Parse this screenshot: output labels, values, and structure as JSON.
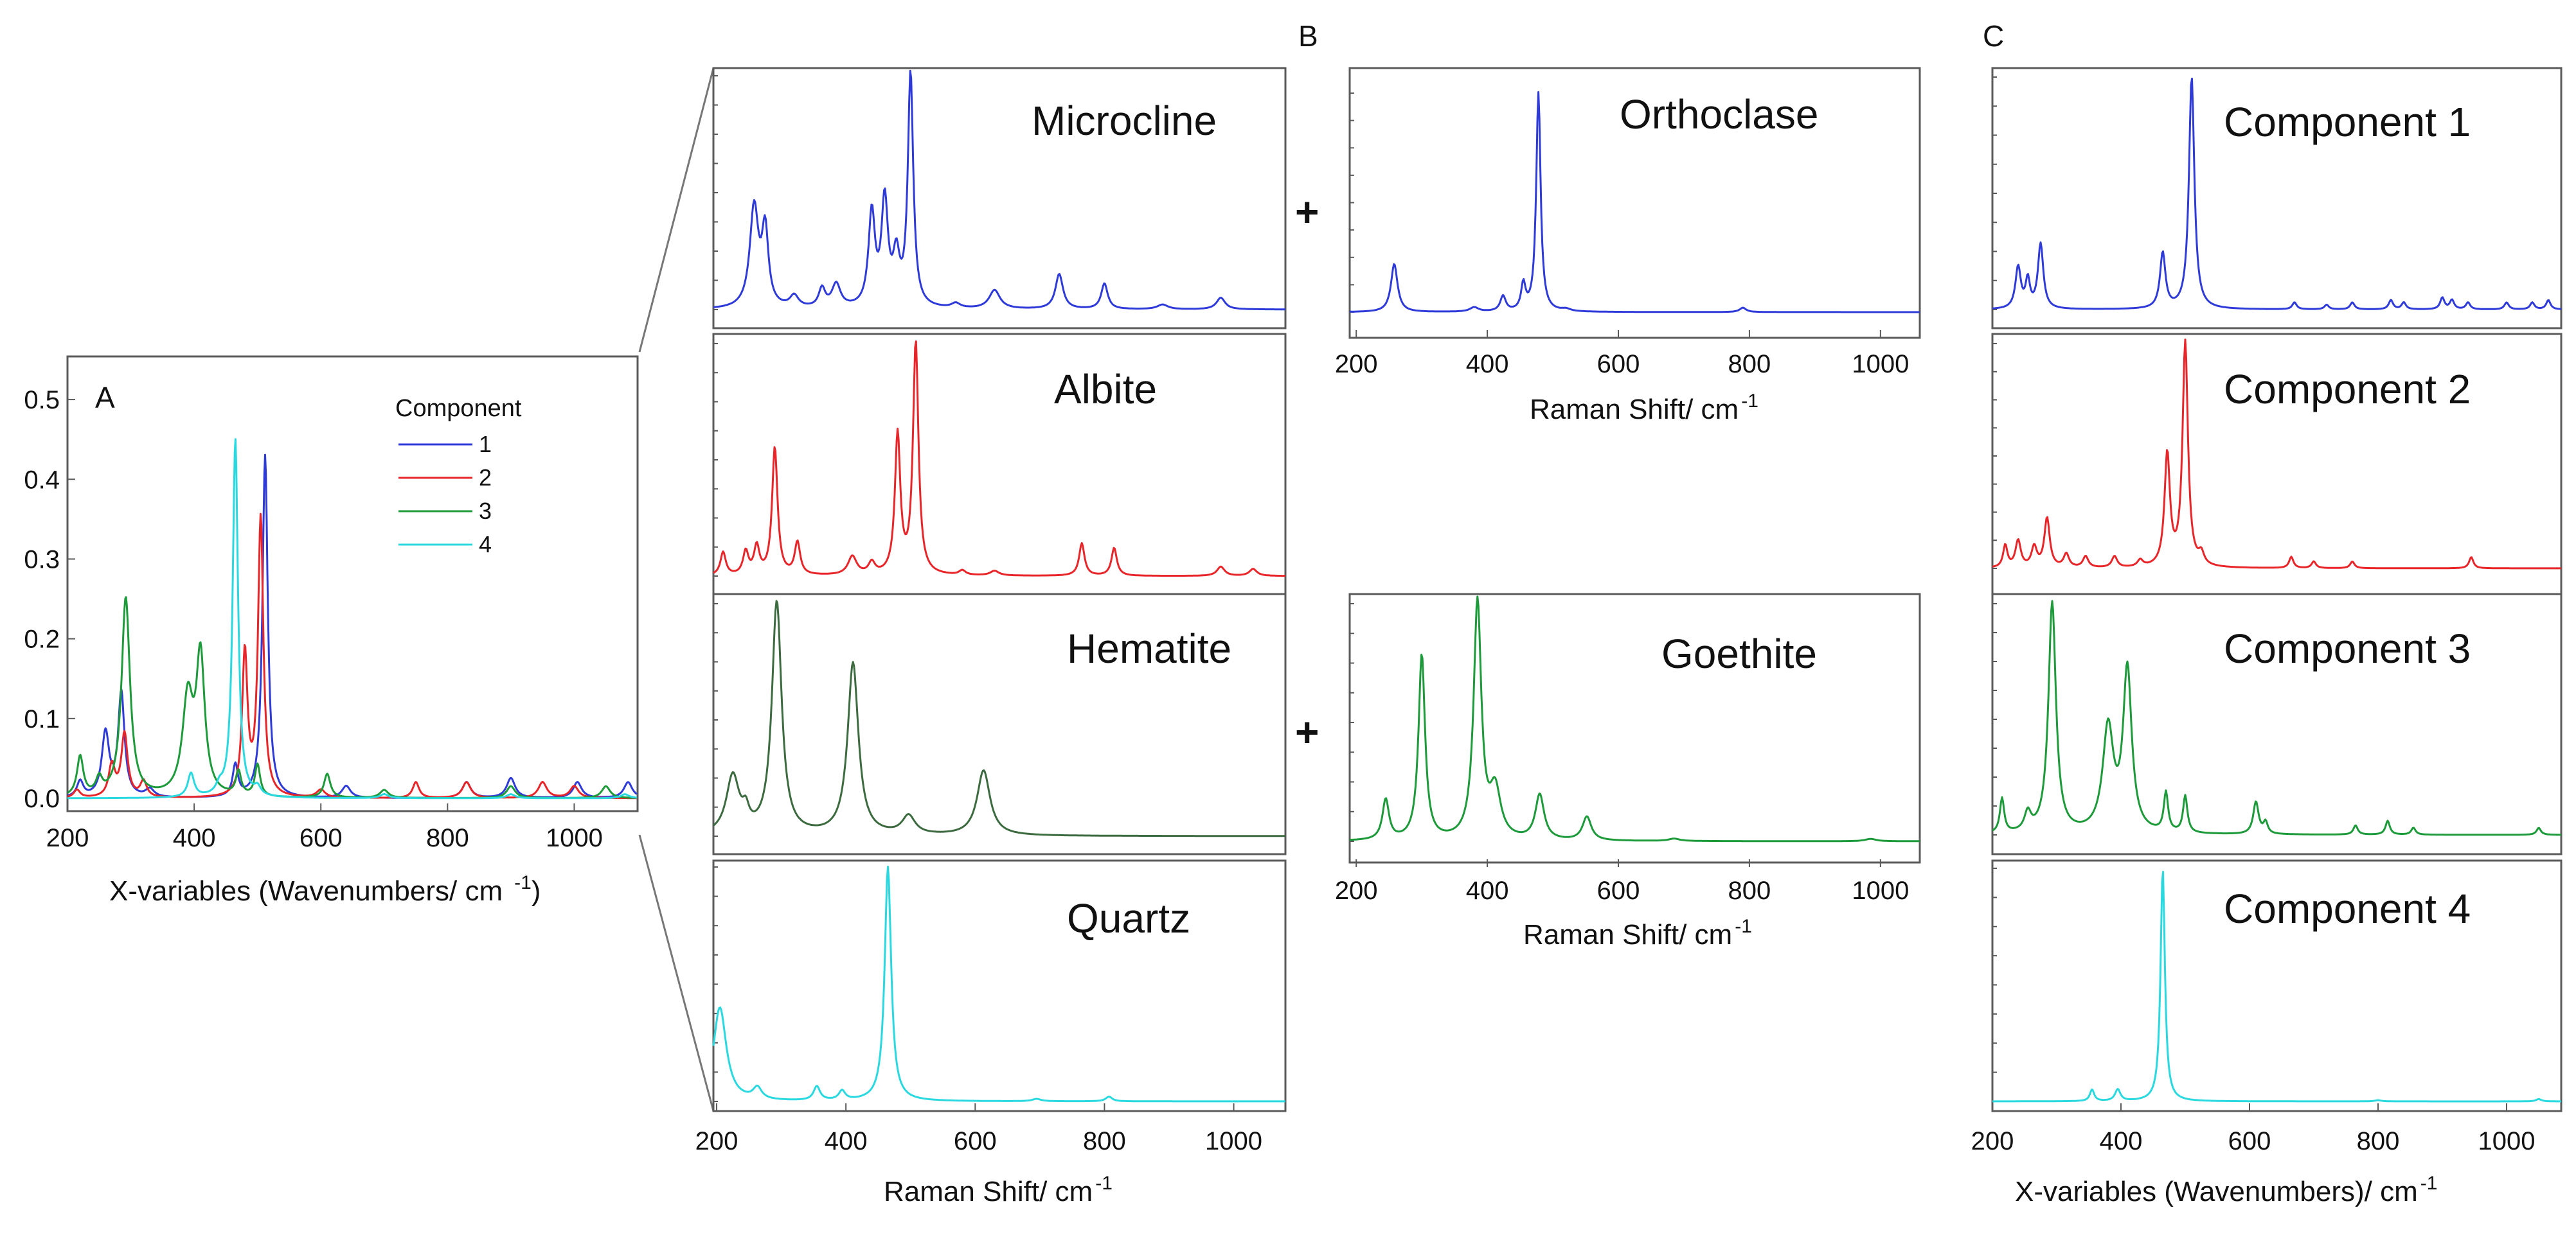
{
  "figure_labels": {
    "a": "A",
    "b": "B",
    "c": "C",
    "plus": "+"
  },
  "axis_titles": {
    "a_x": "X-variables (Wavenumbers/ cm",
    "a_x_exp": "-1",
    "a_x_close": ")",
    "raman": "Raman Shift/ cm",
    "raman_exp": "-1",
    "c_x": "X-variables (Wavenumbers)/ cm",
    "c_x_exp": "-1"
  },
  "colors": {
    "blue": "#2f3bd9",
    "red": "#e8262a",
    "green": "#1d9a3a",
    "dark_green": "#3d6b40",
    "cyan": "#2ad9e0"
  },
  "chart_data": [
    {
      "id": "A",
      "type": "line",
      "title": "A",
      "xlabel": "X-variables (Wavenumbers/ cm -1)",
      "ylabel": "",
      "xlim": [
        200,
        1100
      ],
      "ylim": [
        0,
        0.55
      ],
      "x_ticks": [
        200,
        400,
        600,
        800,
        1000
      ],
      "y_ticks": [
        0.0,
        0.1,
        0.2,
        0.3,
        0.4,
        0.5
      ],
      "y_tick_labels": [
        "0.0",
        "0.1",
        "0.2",
        "0.3",
        "0.4",
        "0.5"
      ],
      "legend": {
        "title": "Component",
        "position": "top-right"
      },
      "series": [
        {
          "name": "1",
          "color": "#2f3bd9",
          "peaks": [
            [
              220,
              0.02,
              6
            ],
            [
              260,
              0.08,
              7
            ],
            [
              285,
              0.13,
              6
            ],
            [
              330,
              0.01,
              8
            ],
            [
              465,
              0.04,
              5
            ],
            [
              512,
              0.43,
              5
            ],
            [
              640,
              0.015,
              8
            ],
            [
              830,
              0.02,
              8
            ],
            [
              900,
              0.025,
              8
            ],
            [
              1005,
              0.02,
              8
            ],
            [
              1085,
              0.02,
              8
            ]
          ]
        },
        {
          "name": "2",
          "color": "#e8262a",
          "peaks": [
            [
              215,
              0.01,
              6
            ],
            [
              270,
              0.04,
              6
            ],
            [
              290,
              0.08,
              6
            ],
            [
              320,
              0.02,
              6
            ],
            [
              480,
              0.18,
              5
            ],
            [
              505,
              0.35,
              5
            ],
            [
              600,
              0.01,
              8
            ],
            [
              750,
              0.02,
              6
            ],
            [
              830,
              0.02,
              8
            ],
            [
              950,
              0.02,
              8
            ],
            [
              1000,
              0.015,
              8
            ]
          ]
        },
        {
          "name": "3",
          "color": "#1d9a3a",
          "peaks": [
            [
              220,
              0.05,
              6
            ],
            [
              250,
              0.02,
              6
            ],
            [
              292,
              0.25,
              8
            ],
            [
              390,
              0.12,
              10
            ],
            [
              410,
              0.17,
              8
            ],
            [
              470,
              0.03,
              5
            ],
            [
              500,
              0.04,
              5
            ],
            [
              610,
              0.03,
              6
            ],
            [
              700,
              0.01,
              8
            ],
            [
              900,
              0.015,
              8
            ],
            [
              1050,
              0.015,
              8
            ]
          ]
        },
        {
          "name": "4",
          "color": "#2ad9e0",
          "peaks": [
            [
              395,
              0.03,
              6
            ],
            [
              440,
              0.01,
              6
            ],
            [
              465,
              0.45,
              5
            ],
            [
              500,
              0.01,
              6
            ],
            [
              700,
              0.005,
              8
            ],
            [
              900,
              0.005,
              8
            ],
            [
              1080,
              0.005,
              8
            ]
          ]
        }
      ]
    },
    {
      "id": "Microcline",
      "type": "line",
      "title": "Microcline",
      "xlim": [
        195,
        1080
      ],
      "ymax": 1.0,
      "color": "#2f3bd9",
      "series": [
        {
          "name": "Microcline",
          "peaks": [
            [
              258,
              0.43,
              8
            ],
            [
              275,
              0.32,
              6
            ],
            [
              320,
              0.05,
              8
            ],
            [
              363,
              0.08,
              6
            ],
            [
              385,
              0.1,
              8
            ],
            [
              440,
              0.4,
              6
            ],
            [
              460,
              0.45,
              6
            ],
            [
              478,
              0.2,
              6
            ],
            [
              500,
              1.0,
              5
            ],
            [
              570,
              0.02,
              8
            ],
            [
              630,
              0.08,
              10
            ],
            [
              730,
              0.15,
              7
            ],
            [
              800,
              0.11,
              6
            ],
            [
              890,
              0.02,
              10
            ],
            [
              980,
              0.05,
              8
            ]
          ]
        }
      ]
    },
    {
      "id": "Albite",
      "type": "line",
      "title": "Albite",
      "xlim": [
        195,
        1080
      ],
      "ymax": 1.0,
      "color": "#e8262a",
      "series": [
        {
          "name": "Albite",
          "peaks": [
            [
              210,
              0.1,
              5
            ],
            [
              245,
              0.1,
              5
            ],
            [
              262,
              0.12,
              5
            ],
            [
              290,
              0.55,
              5
            ],
            [
              325,
              0.14,
              5
            ],
            [
              410,
              0.08,
              8
            ],
            [
              440,
              0.05,
              6
            ],
            [
              480,
              0.6,
              5
            ],
            [
              508,
              1.0,
              5
            ],
            [
              580,
              0.02,
              6
            ],
            [
              630,
              0.02,
              8
            ],
            [
              765,
              0.14,
              5
            ],
            [
              815,
              0.12,
              5
            ],
            [
              980,
              0.04,
              7
            ],
            [
              1030,
              0.03,
              7
            ]
          ]
        }
      ]
    },
    {
      "id": "Hematite",
      "type": "line",
      "title": "Hematite",
      "xlim": [
        195,
        1080
      ],
      "ymax": 1.0,
      "color": "#3d6b40",
      "series": [
        {
          "name": "Hematite",
          "peaks": [
            [
              225,
              0.25,
              12
            ],
            [
              245,
              0.07,
              6
            ],
            [
              293,
              1.0,
              9
            ],
            [
              411,
              0.74,
              10
            ],
            [
              497,
              0.08,
              12
            ],
            [
              613,
              0.28,
              12
            ]
          ]
        }
      ]
    },
    {
      "id": "Quartz",
      "type": "line",
      "title": "Quartz",
      "xlim": [
        195,
        1080
      ],
      "ymax": 1.0,
      "color": "#2ad9e0",
      "series": [
        {
          "name": "Quartz",
          "peaks": [
            [
              205,
              0.4,
              12
            ],
            [
              263,
              0.05,
              8
            ],
            [
              355,
              0.06,
              6
            ],
            [
              394,
              0.04,
              6
            ],
            [
              465,
              1.0,
              6
            ],
            [
              695,
              0.01,
              8
            ],
            [
              807,
              0.02,
              6
            ]
          ]
        }
      ]
    },
    {
      "id": "Orthoclase",
      "type": "line",
      "title": "Orthoclase",
      "xlim": [
        190,
        1060
      ],
      "ymax": 1.0,
      "color": "#2f3bd9",
      "x_ticks": [
        200,
        400,
        600,
        800,
        1000
      ],
      "series": [
        {
          "name": "Orthoclase",
          "peaks": [
            [
              258,
              0.22,
              6
            ],
            [
              380,
              0.02,
              8
            ],
            [
              424,
              0.07,
              5
            ],
            [
              455,
              0.12,
              4
            ],
            [
              478,
              1.0,
              4
            ],
            [
              520,
              0.01,
              8
            ],
            [
              790,
              0.02,
              6
            ]
          ]
        }
      ]
    },
    {
      "id": "Goethite",
      "type": "line",
      "title": "Goethite",
      "xlim": [
        190,
        1060
      ],
      "ymax": 1.0,
      "color": "#1d9a3a",
      "x_ticks": [
        200,
        400,
        600,
        800,
        1000
      ],
      "series": [
        {
          "name": "Goethite",
          "peaks": [
            [
              245,
              0.17,
              6
            ],
            [
              300,
              0.78,
              6
            ],
            [
              385,
              1.0,
              7
            ],
            [
              412,
              0.2,
              10
            ],
            [
              480,
              0.19,
              8
            ],
            [
              552,
              0.1,
              8
            ],
            [
              685,
              0.01,
              10
            ],
            [
              985,
              0.01,
              10
            ]
          ]
        }
      ]
    },
    {
      "id": "Component 1",
      "type": "line",
      "title": "Component 1",
      "xlim": [
        200,
        1085
      ],
      "ymax": 1.0,
      "color": "#2f3bd9",
      "series": [
        {
          "name": "Component 1",
          "peaks": [
            [
              240,
              0.18,
              5
            ],
            [
              255,
              0.12,
              4
            ],
            [
              275,
              0.28,
              5
            ],
            [
              465,
              0.24,
              5
            ],
            [
              510,
              1.0,
              5
            ],
            [
              670,
              0.03,
              4
            ],
            [
              720,
              0.02,
              4
            ],
            [
              760,
              0.03,
              4
            ],
            [
              820,
              0.04,
              4
            ],
            [
              840,
              0.03,
              4
            ],
            [
              900,
              0.05,
              4
            ],
            [
              915,
              0.04,
              4
            ],
            [
              940,
              0.03,
              4
            ],
            [
              1000,
              0.03,
              4
            ],
            [
              1040,
              0.03,
              4
            ],
            [
              1065,
              0.04,
              4
            ]
          ]
        }
      ]
    },
    {
      "id": "Component 2",
      "type": "line",
      "title": "Component 2",
      "xlim": [
        200,
        1085
      ],
      "ymax": 1.0,
      "color": "#e8262a",
      "series": [
        {
          "name": "Component 2",
          "peaks": [
            [
              220,
              0.1,
              4
            ],
            [
              240,
              0.12,
              5
            ],
            [
              265,
              0.09,
              5
            ],
            [
              285,
              0.22,
              5
            ],
            [
              315,
              0.06,
              5
            ],
            [
              345,
              0.05,
              5
            ],
            [
              390,
              0.05,
              5
            ],
            [
              430,
              0.03,
              5
            ],
            [
              472,
              0.5,
              5
            ],
            [
              500,
              1.0,
              5
            ],
            [
              525,
              0.05,
              5
            ],
            [
              665,
              0.05,
              4
            ],
            [
              700,
              0.03,
              4
            ],
            [
              760,
              0.03,
              4
            ],
            [
              945,
              0.05,
              4
            ]
          ]
        }
      ]
    },
    {
      "id": "Component 3",
      "type": "line",
      "title": "Component 3",
      "xlim": [
        200,
        1085
      ],
      "ymax": 1.0,
      "color": "#1d9a3a",
      "series": [
        {
          "name": "Component 3",
          "peaks": [
            [
              215,
              0.15,
              4
            ],
            [
              255,
              0.08,
              6
            ],
            [
              293,
              1.0,
              7
            ],
            [
              380,
              0.45,
              10
            ],
            [
              410,
              0.7,
              8
            ],
            [
              470,
              0.17,
              4
            ],
            [
              500,
              0.16,
              4
            ],
            [
              610,
              0.14,
              5
            ],
            [
              625,
              0.05,
              4
            ],
            [
              765,
              0.04,
              4
            ],
            [
              815,
              0.06,
              4
            ],
            [
              855,
              0.03,
              4
            ],
            [
              1050,
              0.03,
              4
            ]
          ]
        }
      ]
    },
    {
      "id": "Component 4",
      "type": "line",
      "title": "Component 4",
      "xlim": [
        200,
        1085
      ],
      "ymax": 1.0,
      "color": "#2ad9e0",
      "x_ticks": [
        200,
        400,
        600,
        800,
        1000
      ],
      "series": [
        {
          "name": "Component 4",
          "peaks": [
            [
              355,
              0.05,
              4
            ],
            [
              395,
              0.05,
              5
            ],
            [
              465,
              1.0,
              4
            ],
            [
              800,
              0.005,
              6
            ],
            [
              1050,
              0.01,
              5
            ]
          ]
        }
      ]
    }
  ]
}
